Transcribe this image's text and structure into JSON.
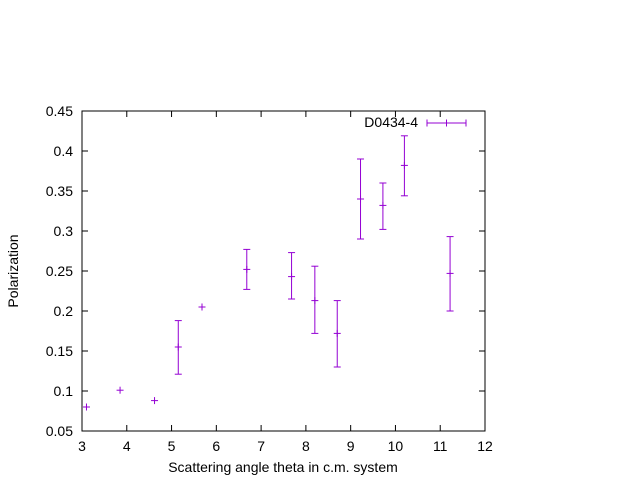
{
  "chart_data": {
    "type": "scatter",
    "title": "",
    "xlabel": "Scattering angle theta in c.m. system",
    "ylabel": "Polarization",
    "xlim": [
      3,
      12
    ],
    "ylim": [
      0.05,
      0.45
    ],
    "x_ticks": [
      3,
      4,
      5,
      6,
      7,
      8,
      9,
      10,
      11,
      12
    ],
    "x_tick_labels": [
      "3",
      "4",
      "5",
      "6",
      "7",
      "8",
      "9",
      "10",
      "11",
      "12"
    ],
    "y_ticks": [
      0.05,
      0.1,
      0.15,
      0.2,
      0.25,
      0.3,
      0.35,
      0.4,
      0.45
    ],
    "y_tick_labels": [
      "0.05",
      "0.1",
      "0.15",
      "0.2",
      "0.25",
      "0.3",
      "0.35",
      "0.4",
      "0.45"
    ],
    "grid": false,
    "legend_position": "top-right",
    "series": [
      {
        "name": "D0434-4",
        "color": "#9400d3",
        "points": [
          {
            "x": 3.1,
            "y": 0.08,
            "ymin": 0.08,
            "ymax": 0.08
          },
          {
            "x": 3.85,
            "y": 0.101,
            "ymin": 0.101,
            "ymax": 0.101
          },
          {
            "x": 4.62,
            "y": 0.088,
            "ymin": 0.088,
            "ymax": 0.088
          },
          {
            "x": 5.15,
            "y": 0.155,
            "ymin": 0.121,
            "ymax": 0.188
          },
          {
            "x": 5.68,
            "y": 0.205,
            "ymin": 0.205,
            "ymax": 0.205
          },
          {
            "x": 6.68,
            "y": 0.252,
            "ymin": 0.227,
            "ymax": 0.277
          },
          {
            "x": 7.68,
            "y": 0.243,
            "ymin": 0.215,
            "ymax": 0.273
          },
          {
            "x": 8.2,
            "y": 0.213,
            "ymin": 0.172,
            "ymax": 0.256
          },
          {
            "x": 8.7,
            "y": 0.172,
            "ymin": 0.13,
            "ymax": 0.213
          },
          {
            "x": 9.22,
            "y": 0.34,
            "ymin": 0.29,
            "ymax": 0.39
          },
          {
            "x": 9.72,
            "y": 0.332,
            "ymin": 0.302,
            "ymax": 0.36
          },
          {
            "x": 10.2,
            "y": 0.382,
            "ymin": 0.344,
            "ymax": 0.419
          },
          {
            "x": 11.22,
            "y": 0.247,
            "ymin": 0.2,
            "ymax": 0.293
          }
        ]
      }
    ]
  }
}
